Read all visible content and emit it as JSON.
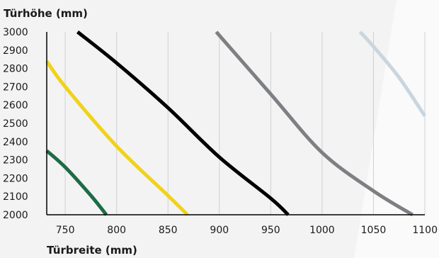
{
  "chart_data": {
    "type": "line",
    "ylabel": "Türhöhe (mm)",
    "xlabel": "Türbreite (mm)",
    "xlim": [
      732,
      1100
    ],
    "ylim": [
      2000,
      3000
    ],
    "xticks": [
      750,
      800,
      850,
      900,
      950,
      1000,
      1050,
      1100
    ],
    "yticks": [
      2000,
      2100,
      2200,
      2300,
      2400,
      2500,
      2600,
      2700,
      2800,
      2900,
      3000
    ],
    "grid": true,
    "background_color": "#f3f3f4",
    "series": [
      {
        "color": "#1e6b45",
        "points": [
          [
            732,
            2350
          ],
          [
            750,
            2260
          ],
          [
            775,
            2105
          ],
          [
            790,
            2000
          ]
        ]
      },
      {
        "color": "#f0d21a",
        "points": [
          [
            732,
            2840
          ],
          [
            750,
            2700
          ],
          [
            800,
            2375
          ],
          [
            850,
            2105
          ],
          [
            869,
            2000
          ]
        ]
      },
      {
        "color": "#000000",
        "points": [
          [
            762,
            3000
          ],
          [
            800,
            2830
          ],
          [
            850,
            2585
          ],
          [
            900,
            2315
          ],
          [
            950,
            2090
          ],
          [
            967,
            2000
          ]
        ]
      },
      {
        "color": "#7d7f83",
        "points": [
          [
            897,
            3000
          ],
          [
            950,
            2660
          ],
          [
            1000,
            2340
          ],
          [
            1050,
            2130
          ],
          [
            1088,
            2000
          ]
        ]
      },
      {
        "color": "#c9d6df",
        "points": [
          [
            1037,
            3000
          ],
          [
            1050,
            2920
          ],
          [
            1075,
            2750
          ],
          [
            1100,
            2540
          ]
        ]
      }
    ]
  }
}
